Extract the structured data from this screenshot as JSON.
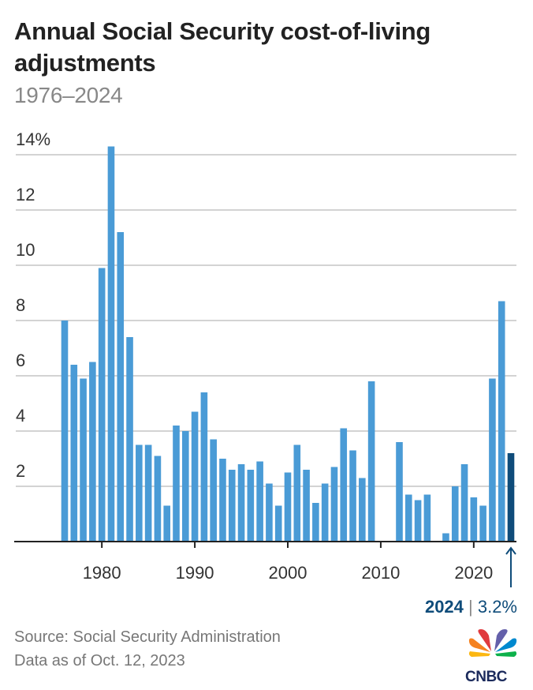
{
  "title": "Annual Social Security cost-of-living adjustments",
  "subtitle": "1976–2024",
  "source": "Source: Social Security Administration",
  "data_as_of": "Data as of Oct. 12, 2023",
  "logo": "CNBC",
  "highlight": {
    "year": "2024",
    "separator": "|",
    "value": "3.2%"
  },
  "colors": {
    "bar": "#4a9bd6",
    "highlight": "#0f4c7a",
    "grid": "#d3d3d3",
    "axis": "#222222"
  },
  "chart_data": {
    "type": "bar",
    "x": [
      1976,
      1977,
      1978,
      1979,
      1980,
      1981,
      1982,
      1983,
      1984,
      1985,
      1986,
      1987,
      1988,
      1989,
      1990,
      1991,
      1992,
      1993,
      1994,
      1995,
      1996,
      1997,
      1998,
      1999,
      2000,
      2001,
      2002,
      2003,
      2004,
      2005,
      2006,
      2007,
      2008,
      2009,
      2010,
      2011,
      2012,
      2013,
      2014,
      2015,
      2016,
      2017,
      2018,
      2019,
      2020,
      2021,
      2022,
      2023,
      2024
    ],
    "values": [
      8.0,
      6.4,
      5.9,
      6.5,
      9.9,
      14.3,
      11.2,
      7.4,
      3.5,
      3.5,
      3.1,
      1.3,
      4.2,
      4.0,
      4.7,
      5.4,
      3.7,
      3.0,
      2.6,
      2.8,
      2.6,
      2.9,
      2.1,
      1.3,
      2.5,
      3.5,
      2.6,
      1.4,
      2.1,
      2.7,
      4.1,
      3.3,
      2.3,
      5.8,
      0,
      0,
      3.6,
      1.7,
      1.5,
      1.7,
      0,
      0.3,
      2.0,
      2.8,
      1.6,
      1.3,
      5.9,
      8.7,
      3.2
    ],
    "ylim": [
      0,
      14
    ],
    "y_ticks": [
      {
        "v": 2,
        "label": "2"
      },
      {
        "v": 4,
        "label": "4"
      },
      {
        "v": 6,
        "label": "6"
      },
      {
        "v": 8,
        "label": "8"
      },
      {
        "v": 10,
        "label": "10"
      },
      {
        "v": 12,
        "label": "12"
      },
      {
        "v": 14,
        "label": "14%"
      }
    ],
    "x_ticks": [
      1980,
      1990,
      2000,
      2010,
      2020
    ],
    "grid": true,
    "highlighted_year": 2024
  }
}
